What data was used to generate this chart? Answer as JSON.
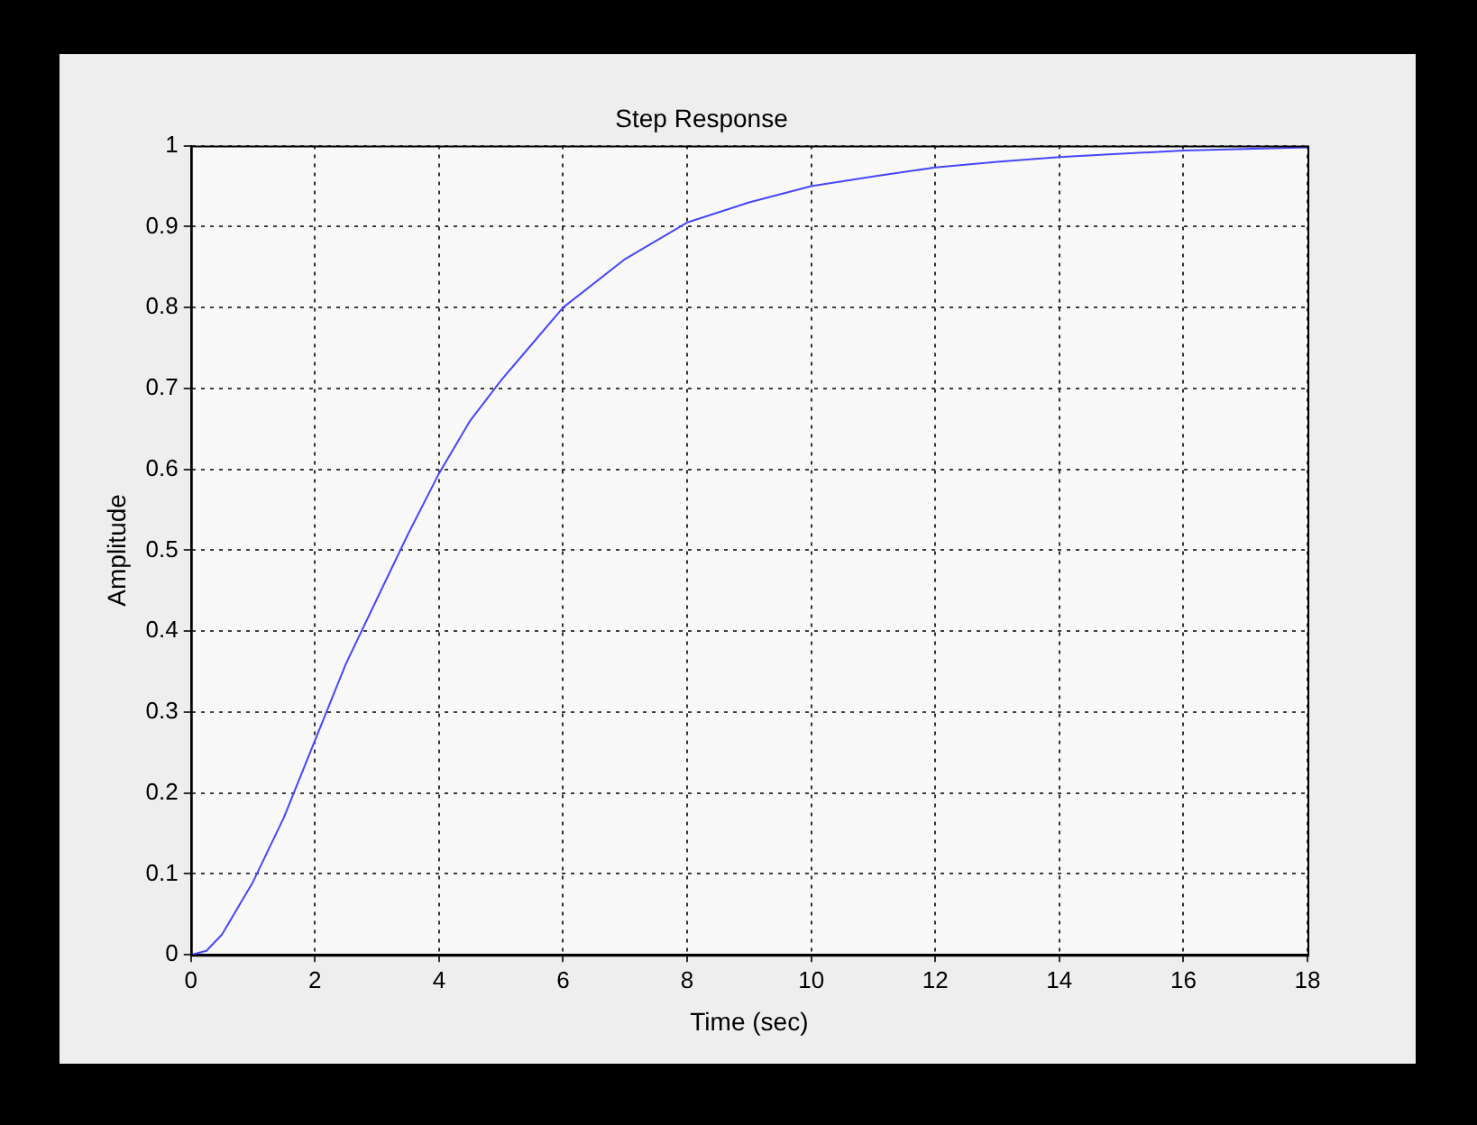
{
  "chart_data": {
    "type": "line",
    "title": "Step Response",
    "xlabel": "Time (sec)",
    "ylabel": "Amplitude",
    "x": [
      0,
      0.25,
      0.5,
      1,
      1.5,
      2,
      2.5,
      3,
      3.5,
      4,
      4.5,
      5,
      5.5,
      6,
      7,
      8,
      9,
      10,
      11,
      12,
      13,
      14,
      15,
      16,
      17,
      18
    ],
    "series": [
      {
        "color": "#4646ff",
        "values": [
          0,
          0.005,
          0.025,
          0.09,
          0.17,
          0.265,
          0.36,
          0.44,
          0.52,
          0.595,
          0.66,
          0.71,
          0.755,
          0.8,
          0.86,
          0.905,
          0.93,
          0.95,
          0.962,
          0.973,
          0.98,
          0.986,
          0.99,
          0.994,
          0.996,
          0.998
        ]
      }
    ],
    "xlim": [
      0,
      18
    ],
    "xticks": [
      0,
      2,
      4,
      6,
      8,
      10,
      12,
      14,
      16,
      18
    ],
    "ylim": [
      0,
      1
    ],
    "yticks": [
      0,
      0.1,
      0.2,
      0.3,
      0.4,
      0.5,
      0.6,
      0.7,
      0.8,
      0.9,
      1
    ],
    "grid": true,
    "legend": false,
    "marker": "none",
    "line_style": "solid"
  }
}
